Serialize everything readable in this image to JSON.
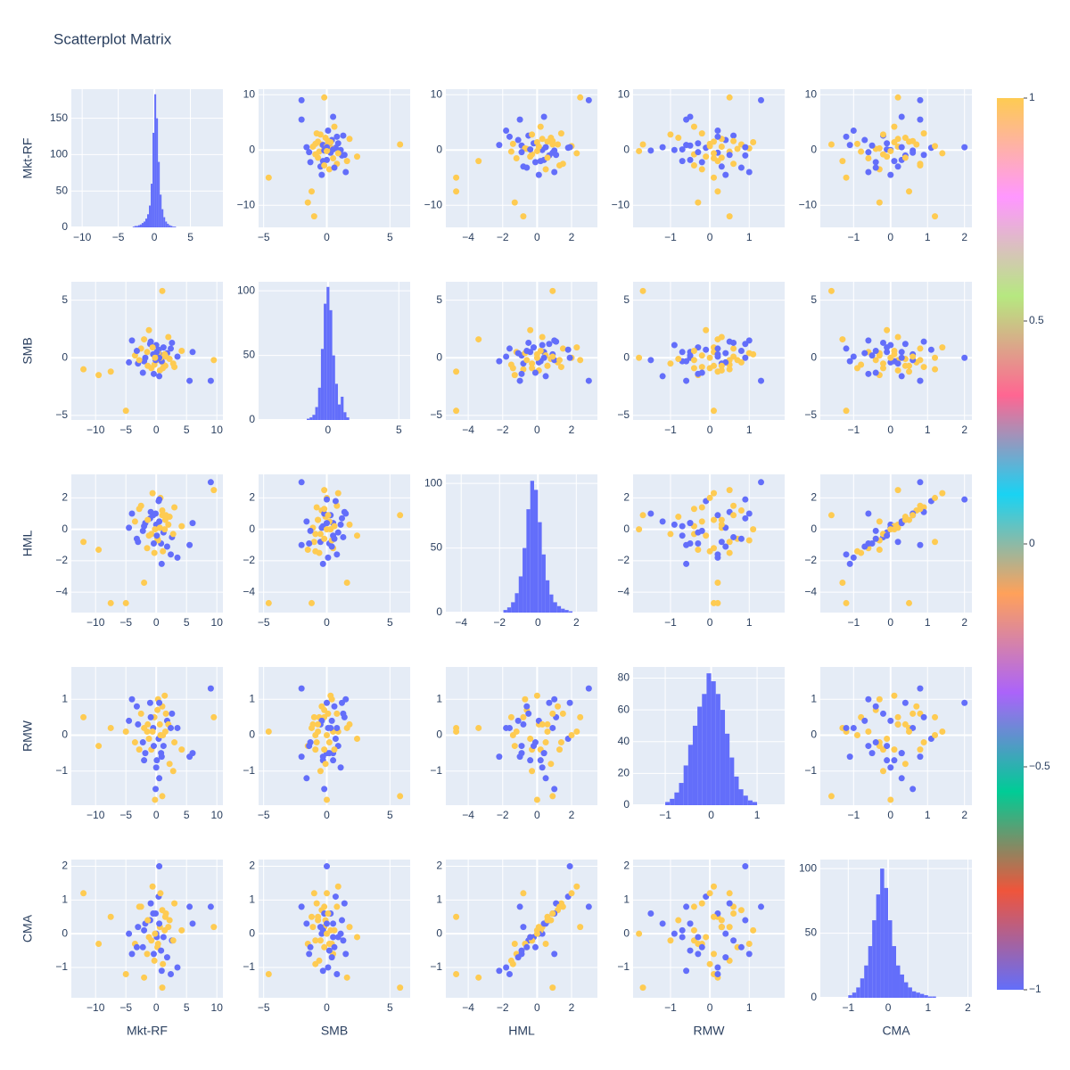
{
  "chart_data": {
    "type": "scatter_matrix",
    "title": "Scatterplot Matrix",
    "grid": true,
    "plot_bg": "#e5ecf6",
    "hist_color": "#636efa",
    "colorbar": {
      "clim": [
        -1,
        1
      ],
      "colors": [
        "#636efa",
        "#EF553B",
        "#00cc96",
        "#ab63fa",
        "#FFA15A",
        "#19d3f3",
        "#FF6692",
        "#B6E880",
        "#FF97FF",
        "#FECB52"
      ],
      "ticks": [
        {
          "value": -1,
          "label": "−1"
        },
        {
          "value": -0.5,
          "label": "−0.5"
        },
        0,
        0.5,
        1
      ]
    },
    "dimensions": [
      {
        "label": "Mkt-RF",
        "lim": [
          -14,
          11
        ],
        "ticks": [
          {
            "value": -10,
            "label": "−10"
          },
          {
            "value": -5,
            "label": "−5"
          },
          0,
          5,
          10
        ],
        "yticks": [
          {
            "value": -10,
            "label": "−10"
          },
          0,
          10
        ],
        "hist": {
          "xlim": [
            -11.5,
            9.5
          ],
          "xticks": [
            {
              "value": -10,
              "label": "−10"
            },
            {
              "value": -5,
              "label": "−5"
            },
            0,
            5
          ],
          "bins": [
            -3,
            -2.75,
            -2.5,
            -2.25,
            -2,
            -1.75,
            -1.5,
            -1.25,
            -1,
            -0.75,
            -0.5,
            -0.25,
            0,
            0.25,
            0.5,
            0.75,
            1,
            1.25,
            1.5,
            1.75,
            2,
            2.25,
            2.5,
            2.75,
            3
          ],
          "counts": [
            1,
            2,
            2,
            3,
            4,
            6,
            8,
            12,
            18,
            30,
            60,
            130,
            183,
            150,
            90,
            45,
            25,
            14,
            8,
            5,
            3,
            2,
            1,
            1
          ],
          "ylim": [
            0,
            190
          ],
          "yticks": [
            0,
            50,
            100,
            150
          ]
        }
      },
      {
        "label": "SMB",
        "lim": [
          -5.4,
          6.6
        ],
        "ticks": [
          {
            "value": -5,
            "label": "−5"
          },
          0,
          5
        ],
        "yticks": [
          {
            "value": -5,
            "label": "−5"
          },
          0,
          5
        ],
        "hist": {
          "xlim": [
            -4.9,
            5.8
          ],
          "xticks": [
            0,
            5
          ],
          "bins": [
            -1.5,
            -1.3,
            -1.1,
            -0.9,
            -0.7,
            -0.5,
            -0.3,
            -0.1,
            0.1,
            0.3,
            0.5,
            0.7,
            0.9,
            1.1,
            1.3,
            1.5
          ],
          "counts": [
            1,
            2,
            4,
            10,
            25,
            55,
            90,
            103,
            85,
            50,
            28,
            12,
            18,
            6,
            2
          ],
          "ylim": [
            0,
            107
          ],
          "yticks": [
            0,
            50,
            100
          ]
        }
      },
      {
        "label": "HML",
        "lim": [
          -5.3,
          3.5
        ],
        "ticks": [
          {
            "value": -4,
            "label": "−4"
          },
          {
            "value": -2,
            "label": "−2"
          },
          0,
          2
        ],
        "yticks": [
          {
            "value": -4,
            "label": "−4"
          },
          {
            "value": -2,
            "label": "−2"
          },
          0,
          2
        ],
        "hist": {
          "xlim": [
            -4.8,
            3.1
          ],
          "xticks": [
            {
              "value": -4,
              "label": "−4"
            },
            {
              "value": -2,
              "label": "−2"
            },
            0,
            2
          ],
          "bins": [
            -1.8,
            -1.6,
            -1.4,
            -1.2,
            -1,
            -0.8,
            -0.6,
            -0.4,
            -0.2,
            0,
            0.2,
            0.4,
            0.6,
            0.8,
            1,
            1.2,
            1.4,
            1.6,
            1.8
          ],
          "counts": [
            2,
            4,
            8,
            15,
            28,
            50,
            80,
            102,
            95,
            70,
            45,
            25,
            14,
            8,
            5,
            3,
            2,
            1
          ],
          "ylim": [
            0,
            107
          ],
          "yticks": [
            0,
            50,
            100
          ]
        }
      },
      {
        "label": "RMW",
        "lim": [
          -1.95,
          1.9
        ],
        "ticks": [
          {
            "value": -1,
            "label": "−1"
          },
          0,
          1
        ],
        "yticks": [
          {
            "value": -1,
            "label": "−1"
          },
          0,
          1
        ],
        "hist": {
          "xlim": [
            -1.7,
            1.6
          ],
          "xticks": [
            {
              "value": -1,
              "label": "−1"
            },
            0,
            1
          ],
          "bins": [
            -1,
            -0.9,
            -0.8,
            -0.7,
            -0.6,
            -0.5,
            -0.4,
            -0.3,
            -0.2,
            -0.1,
            0,
            0.1,
            0.2,
            0.3,
            0.4,
            0.5,
            0.6,
            0.7,
            0.8,
            0.9,
            1
          ],
          "counts": [
            2,
            4,
            8,
            14,
            25,
            38,
            50,
            62,
            70,
            83,
            78,
            70,
            60,
            45,
            30,
            18,
            10,
            6,
            3,
            2
          ],
          "ylim": [
            0,
            87
          ],
          "yticks": [
            0,
            20,
            40,
            60,
            80
          ]
        }
      },
      {
        "label": "CMA",
        "lim": [
          -1.9,
          2.2
        ],
        "ticks": [
          {
            "value": -1,
            "label": "−1"
          },
          0,
          1,
          2
        ],
        "yticks": [
          {
            "value": -1,
            "label": "−1"
          },
          0,
          1,
          2
        ],
        "hist": {
          "xlim": [
            -1.7,
            2.1
          ],
          "xticks": [
            {
              "value": -1,
              "label": "−1"
            },
            0,
            1,
            2
          ],
          "bins": [
            -1,
            -0.9,
            -0.8,
            -0.7,
            -0.6,
            -0.5,
            -0.4,
            -0.3,
            -0.2,
            -0.1,
            0,
            0.1,
            0.2,
            0.3,
            0.4,
            0.5,
            0.6,
            0.7,
            0.8,
            0.9,
            1,
            1.1,
            1.2
          ],
          "counts": [
            2,
            4,
            8,
            15,
            25,
            40,
            60,
            80,
            100,
            85,
            60,
            40,
            25,
            18,
            12,
            8,
            5,
            4,
            3,
            2,
            1,
            1
          ],
          "ylim": [
            0,
            107
          ],
          "yticks": [
            0,
            50,
            100
          ]
        }
      }
    ],
    "points": [
      [
        -12,
        -1,
        -0.8,
        0.5,
        1.2
      ],
      [
        -9.5,
        -1.5,
        -1.3,
        -0.3,
        -0.3
      ],
      [
        -5,
        -4.6,
        -4.7,
        0.1,
        -1.2
      ],
      [
        -7.5,
        -1.2,
        -4.7,
        0.2,
        0.5
      ],
      [
        9.5,
        -0.2,
        2.5,
        0.5,
        0.2
      ],
      [
        9,
        -2,
        3,
        1.3,
        0.8
      ],
      [
        1,
        5.8,
        0.9,
        -1.7,
        -1.6
      ],
      [
        -2,
        1.6,
        -3.4,
        0.2,
        -1.3
      ],
      [
        -4,
        1.5,
        1,
        1,
        -0.6
      ],
      [
        5.5,
        -2,
        -1,
        -0.6,
        0.8
      ],
      [
        6,
        0.5,
        0.4,
        -0.5,
        0.3
      ],
      [
        -3.5,
        0.2,
        0.5,
        -0.2,
        -0.3
      ],
      [
        -3,
        -0.5,
        -0.8,
        0.3,
        0.2
      ],
      [
        -2.5,
        0.8,
        1.5,
        0.6,
        0.8
      ],
      [
        -2,
        -0.3,
        0.2,
        -0.7,
        0.1
      ],
      [
        -1.5,
        0.5,
        -1.2,
        0.1,
        -0.6
      ],
      [
        -1,
        1.2,
        0.7,
        0.9,
        0.4
      ],
      [
        -0.8,
        -0.9,
        -0.3,
        -0.4,
        -0.2
      ],
      [
        -0.5,
        0.3,
        0.9,
        0.2,
        0.6
      ],
      [
        -0.3,
        -0.6,
        -1.5,
        0.5,
        -0.8
      ],
      [
        0,
        1.1,
        0.3,
        -0.9,
        0
      ],
      [
        0.2,
        -0.2,
        -0.6,
        0.7,
        -0.4
      ],
      [
        0.4,
        0.7,
        1.8,
        -0.1,
        1.1
      ],
      [
        0.6,
        -1.1,
        0.1,
        0.3,
        0.2
      ],
      [
        0.8,
        0.2,
        -0.9,
        -0.5,
        -0.5
      ],
      [
        1,
        -0.4,
        1.2,
        0.8,
        0.7
      ],
      [
        1.2,
        0.9,
        -0.2,
        -0.3,
        -0.1
      ],
      [
        1.5,
        -0.7,
        0.6,
        0.1,
        0.5
      ],
      [
        1.8,
        0.4,
        -1.1,
        0.4,
        -0.7
      ],
      [
        2.2,
        -0.1,
        0.8,
        -0.8,
        0.4
      ],
      [
        2.6,
        1.3,
        -0.5,
        0.6,
        -0.2
      ],
      [
        3,
        -0.8,
        1.4,
        -0.2,
        0.9
      ],
      [
        3.5,
        0.1,
        -1.8,
        0.2,
        -1
      ],
      [
        4.2,
        0.6,
        0.2,
        -0.4,
        0.1
      ],
      [
        -4.5,
        -0.4,
        0.1,
        0.4,
        0
      ],
      [
        -1.2,
        2.4,
        -0.4,
        -0.1,
        -0.1
      ],
      [
        0.5,
        -1.6,
        0.5,
        -1.2,
        0.3
      ],
      [
        -0.6,
        0.9,
        2.3,
        0.1,
        1.4
      ],
      [
        0.9,
        -0.3,
        -2.2,
        -0.6,
        -1.1
      ],
      [
        1.4,
        0.3,
        0,
        1.1,
        0.1
      ],
      [
        -2.2,
        -1.3,
        -0.1,
        -0.2,
        -0.4
      ],
      [
        2,
        1.8,
        0.3,
        0.3,
        0.2
      ],
      [
        -0.1,
        -0.2,
        1,
        -1.5,
        0.6
      ],
      [
        0.3,
        0.4,
        -0.7,
        1,
        -0.3
      ],
      [
        -1.8,
        0,
        0.4,
        -0.5,
        0.3
      ],
      [
        1.1,
        -0.9,
        -1.4,
        0,
        -0.9
      ],
      [
        -0.9,
        1.4,
        1.1,
        0.5,
        0.9
      ],
      [
        2.8,
        -0.5,
        -0.3,
        -1,
        -0.2
      ],
      [
        -3.2,
        0.6,
        -0.6,
        0.8,
        -0.4
      ],
      [
        0.7,
        0,
        2,
        0,
        1.2
      ],
      [
        -0.4,
        -1.4,
        -0.9,
        -0.3,
        -0.6
      ],
      [
        1.6,
        0.1,
        0.9,
        0.6,
        0.6
      ],
      [
        0.1,
        0.5,
        -0.4,
        -0.7,
        -0.1
      ],
      [
        -1.4,
        -0.7,
        0.6,
        0.3,
        0.4
      ],
      [
        0.5,
        0,
        1.9,
        0.9,
        2
      ],
      [
        -0.2,
        0,
        0,
        -1.8,
        0
      ],
      [
        2.4,
        0.8,
        -1.6,
        0.2,
        -1.2
      ],
      [
        -2.8,
        -0.2,
        1.3,
        -0.4,
        0.8
      ]
    ],
    "color_values": [
      1,
      1,
      1,
      1,
      1,
      -1,
      1,
      1,
      -1,
      -1,
      -1,
      1,
      -1,
      1,
      -1,
      1,
      -1,
      1,
      -1,
      1,
      -1,
      1,
      -1,
      1,
      -1,
      1,
      -1,
      1,
      -1,
      1,
      -1,
      1,
      -1,
      1,
      -1,
      1,
      -1,
      1,
      -1,
      1,
      -1,
      1,
      -1,
      1,
      -1,
      1,
      -1,
      1,
      -1,
      1,
      -1,
      1,
      -1,
      1,
      -1,
      1,
      -1,
      1
    ]
  }
}
